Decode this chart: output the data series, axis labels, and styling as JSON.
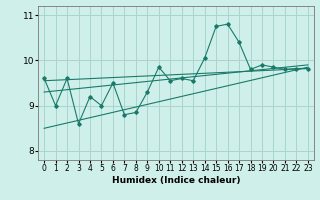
{
  "background_color": "#cff0ea",
  "grid_color": "#aad4cc",
  "line_color": "#1a7a6a",
  "xlabel": "Humidex (Indice chaleur)",
  "ylabel": "",
  "xlim": [
    -0.5,
    23.5
  ],
  "ylim": [
    7.8,
    11.2
  ],
  "yticks": [
    8,
    9,
    10,
    11
  ],
  "xticks": [
    0,
    1,
    2,
    3,
    4,
    5,
    6,
    7,
    8,
    9,
    10,
    11,
    12,
    13,
    14,
    15,
    16,
    17,
    18,
    19,
    20,
    21,
    22,
    23
  ],
  "line1_x": [
    0,
    1,
    2,
    3,
    4,
    5,
    6,
    7,
    8,
    9,
    10,
    11,
    12,
    13,
    14,
    15,
    16,
    17,
    18,
    19,
    20,
    21,
    22,
    23
  ],
  "line1_y": [
    9.6,
    9.0,
    9.6,
    8.6,
    9.2,
    9.0,
    9.5,
    8.8,
    8.85,
    9.3,
    9.85,
    9.55,
    9.6,
    9.55,
    10.05,
    10.75,
    10.8,
    10.4,
    9.8,
    9.9,
    9.85,
    9.8,
    9.82,
    9.82
  ],
  "trend1_x": [
    0,
    23
  ],
  "trend1_y": [
    9.55,
    9.82
  ],
  "trend2_x": [
    0,
    23
  ],
  "trend2_y": [
    9.3,
    9.9
  ],
  "trend3_x": [
    0,
    23
  ],
  "trend3_y": [
    8.5,
    9.85
  ]
}
